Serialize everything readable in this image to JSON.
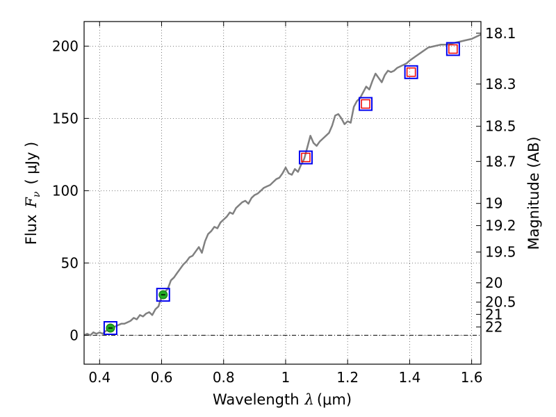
{
  "chart_data": {
    "type": "line",
    "xlabel": "Wavelength",
    "xlabel_symbol": "λ",
    "xlabel_unit": "(μm)",
    "ylabel": "Flux",
    "ylabel_symbol": "F",
    "ylabel_symbol_sub": "ν",
    "ylabel_unit": "( μJy )",
    "y2label": "Magnitude (AB)",
    "xlim": [
      0.35,
      1.63
    ],
    "ylim": [
      -20,
      217
    ],
    "grid": true,
    "x_ticks": [
      0.4,
      0.6,
      0.8,
      1.0,
      1.2,
      1.4,
      1.6
    ],
    "x_tick_labels": [
      "0.4",
      "0.6",
      "0.8",
      "1",
      "1.2",
      "1.4",
      "1.6"
    ],
    "y_ticks": [
      0,
      50,
      100,
      150,
      200
    ],
    "y_tick_labels": [
      "0",
      "50",
      "100",
      "150",
      "200"
    ],
    "y2_tick_values": [
      18.1,
      18.3,
      18.5,
      18.7,
      19,
      19.2,
      19.5,
      20,
      20.5,
      21,
      22
    ],
    "y2_tick_labels": [
      "18.1",
      "18.3",
      "18.5",
      "18.7",
      "19",
      "19.2",
      "19.5",
      "20",
      "20.5",
      "21",
      "22"
    ],
    "series": [
      {
        "kind": "spectrum",
        "color": "#808080",
        "x": [
          0.35,
          0.36,
          0.37,
          0.38,
          0.39,
          0.4,
          0.41,
          0.42,
          0.43,
          0.44,
          0.45,
          0.46,
          0.47,
          0.48,
          0.49,
          0.5,
          0.51,
          0.52,
          0.53,
          0.54,
          0.55,
          0.56,
          0.57,
          0.58,
          0.59,
          0.6,
          0.61,
          0.62,
          0.63,
          0.64,
          0.65,
          0.66,
          0.67,
          0.68,
          0.69,
          0.7,
          0.71,
          0.72,
          0.73,
          0.74,
          0.75,
          0.76,
          0.77,
          0.78,
          0.79,
          0.8,
          0.81,
          0.82,
          0.83,
          0.84,
          0.85,
          0.86,
          0.87,
          0.88,
          0.89,
          0.9,
          0.91,
          0.92,
          0.93,
          0.94,
          0.95,
          0.96,
          0.97,
          0.98,
          0.99,
          1.0,
          1.01,
          1.02,
          1.03,
          1.04,
          1.05,
          1.06,
          1.07,
          1.08,
          1.09,
          1.1,
          1.11,
          1.12,
          1.13,
          1.14,
          1.15,
          1.16,
          1.17,
          1.18,
          1.19,
          1.2,
          1.21,
          1.22,
          1.23,
          1.24,
          1.25,
          1.26,
          1.27,
          1.28,
          1.29,
          1.3,
          1.31,
          1.32,
          1.33,
          1.34,
          1.35,
          1.36,
          1.37,
          1.38,
          1.39,
          1.4,
          1.42,
          1.44,
          1.46,
          1.48,
          1.5,
          1.52,
          1.54,
          1.56,
          1.58,
          1.6,
          1.62,
          1.63
        ],
        "y": [
          0,
          1,
          0,
          2,
          1,
          2,
          1,
          3,
          4,
          5,
          6,
          7,
          8,
          8,
          9,
          10,
          12,
          11,
          14,
          13,
          15,
          16,
          14,
          18,
          20,
          27,
          30,
          32,
          38,
          40,
          43,
          46,
          49,
          51,
          54,
          55,
          58,
          61,
          57,
          65,
          70,
          72,
          75,
          74,
          78,
          80,
          82,
          85,
          84,
          88,
          90,
          92,
          93,
          91,
          95,
          97,
          98,
          100,
          102,
          103,
          104,
          106,
          108,
          109,
          112,
          116,
          112,
          111,
          115,
          113,
          118,
          122,
          130,
          138,
          133,
          131,
          134,
          136,
          138,
          140,
          145,
          152,
          153,
          150,
          146,
          148,
          147,
          158,
          162,
          164,
          168,
          172,
          170,
          176,
          181,
          178,
          175,
          180,
          183,
          182,
          183,
          185,
          186,
          187,
          188,
          190,
          193,
          196,
          199,
          200,
          201,
          201,
          202,
          203,
          204,
          205,
          207,
          208
        ]
      },
      {
        "kind": "photometry-observed",
        "color": "#22aa22",
        "x": [
          0.435,
          0.605
        ],
        "y": [
          5,
          28
        ]
      },
      {
        "kind": "photometry-model-outer",
        "color": "#0000ee",
        "x": [
          0.435,
          0.605,
          1.065,
          1.258,
          1.405,
          1.54
        ],
        "y": [
          5,
          28,
          123,
          160,
          182,
          198
        ]
      },
      {
        "kind": "photometry-model-inner",
        "color": "#ee0000",
        "x": [
          1.065,
          1.258,
          1.405,
          1.54
        ],
        "y": [
          123,
          160,
          182,
          198
        ]
      }
    ]
  }
}
